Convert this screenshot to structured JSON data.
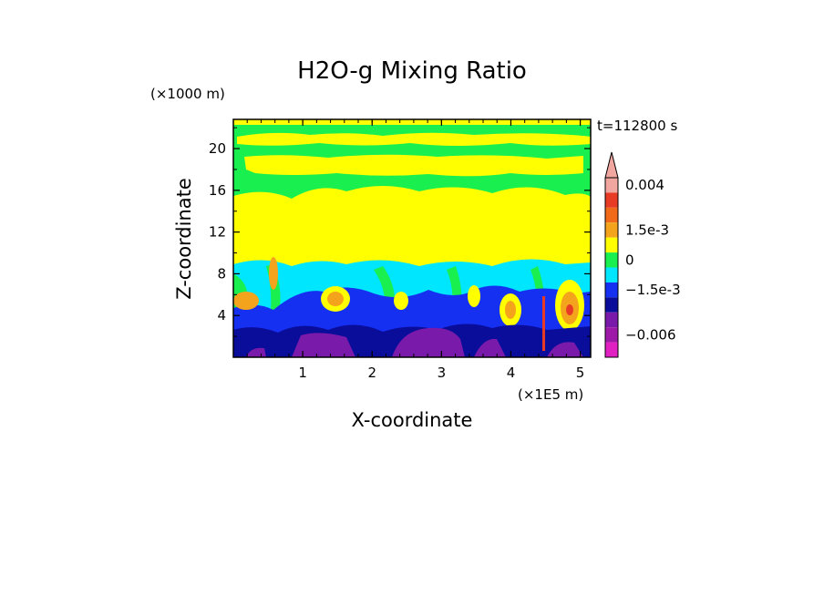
{
  "chart_data": {
    "type": "heatmap",
    "title": "H2O-g Mixing Ratio",
    "xlabel": "X-coordinate",
    "ylabel": "Z-coordinate",
    "x_unit": "(×1E5 m)",
    "y_unit": "(×1000 m)",
    "time_label": "t=112800 s",
    "xlim": [
      0,
      5.15
    ],
    "ylim": [
      0,
      22.8
    ],
    "xticks": [
      1,
      2,
      3,
      4,
      5
    ],
    "yticks": [
      4,
      8,
      12,
      16,
      20
    ],
    "colorbar": {
      "levels": [
        {
          "color": "#f2a6a0",
          "label": "0.004"
        },
        {
          "color": "#e83b26",
          "label": ""
        },
        {
          "color": "#f06a1a",
          "label": ""
        },
        {
          "color": "#f4a31c",
          "label": "1.5e-3"
        },
        {
          "color": "#ffff00",
          "label": ""
        },
        {
          "color": "#1aef50",
          "label": "0"
        },
        {
          "color": "#00e6ff",
          "label": ""
        },
        {
          "color": "#1530f0",
          "label": "−1.5e-3"
        },
        {
          "color": "#0a0c9a",
          "label": ""
        },
        {
          "color": "#7a1aab",
          "label": ""
        },
        {
          "color": "#9d1aa8",
          "label": "−0.006"
        },
        {
          "color": "#e020c0",
          "label": ""
        }
      ],
      "extend": "max"
    }
  }
}
